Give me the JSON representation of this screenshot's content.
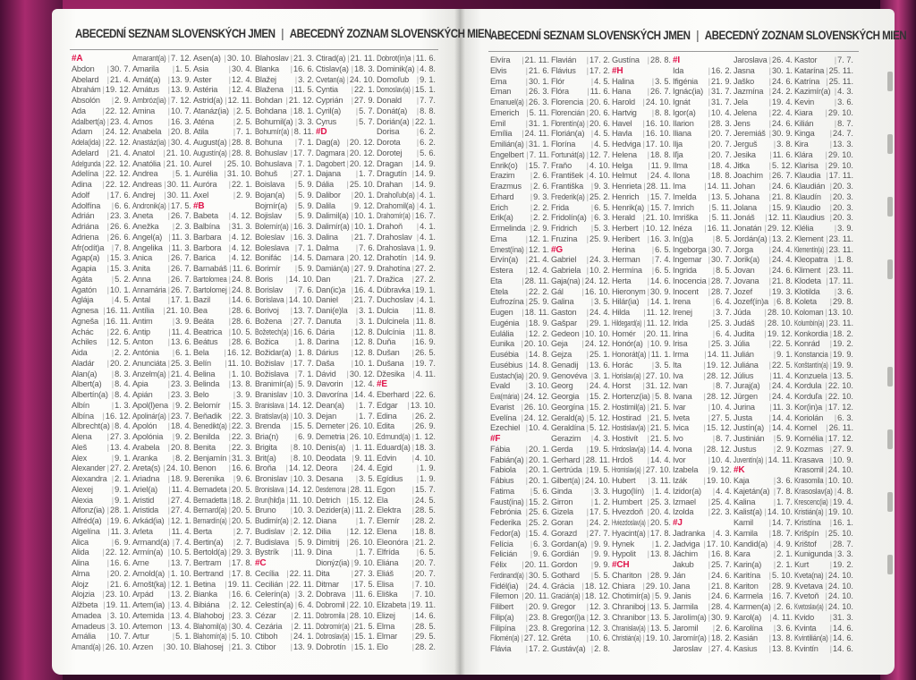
{
  "header_left": {
    "cz": "ABECEDNÍ SEZNAM SLOVENSKÝCH JMEN",
    "sep": "|",
    "sk": "ABECEDNÝ ZOZNAM SLOVENSKÝCH MIEN"
  },
  "header_right": {
    "cz": "ABECEDNÍ SEZNAM SLOVENSKÝCH JMEN",
    "sep": "|",
    "sk": "ABECEDNÝ ZOZNAM SLOVENSKÝCH MIEN"
  },
  "accent_color": "#e0134a",
  "left_columns": [
    [
      "#A",
      "Abdon|30. 7.",
      "Abelard|21. 4.",
      "Abrahám|19. 12.",
      "Absolón|2. 9.",
      "Ada|22. 12.",
      "Adalbert(a)|23. 4.",
      "Adam|24. 12.",
      "Adela(ida)|22. 12.",
      "Adelard|21. 4.",
      "Adelgunda|22. 12.",
      "Adelína|22. 12.",
      "Adina|22. 12.",
      "Adolf|17. 6.",
      "Adolfína|6. 6.",
      "Adrián|23. 3.",
      "Adriána|26. 6.",
      "Adriena|26. 6.",
      "Afr(odít)a|7. 8.",
      "Agap(a)|15. 3.",
      "Agapia|15. 3.",
      "Agáta|5. 2.",
      "Agatón|10. 1.",
      "Aglája|4. 5.",
      "Agnesa|16. 11.",
      "Agneša|16. 11.",
      "Achác|22. 6.",
      "Achiles|12. 5.",
      "Aida|2. 2.",
      "Aladár|20. 2.",
      "Alan(a)|8. 3.",
      "Albert(a)|8. 4.",
      "Albertín(a)|8. 4.",
      "Albín|1. 3.",
      "Albína|16. 12.",
      "Albrecht(a)|8. 4.",
      "Alena|27. 3.",
      "Aleš|13. 4.",
      "Alex|9. 1.",
      "Alexander|27. 2.",
      "Alexandra|2. 1.",
      "Alexej|9. 1.",
      "Alexia|9. 1.",
      "Alfonz(ia)|28. 1.",
      "Alfréd(a)|19. 6.",
      "Algelína|11. 3.",
      "Alica|6. 9.",
      "Alida|22. 12.",
      "Alina|16. 6.",
      "Alma|20. 2.",
      "Alojz|21. 6.",
      "Alojzia|23. 10.",
      "Alžbeta|19. 11.",
      "Amadea|3. 10.",
      "Amadeus|3. 10.",
      "Amália|10. 7.",
      "Amand(a)|26. 10."
    ],
    [
      "Amarant(a)|7. 12.",
      "Amarila|1. 5.",
      "Amát(a)|13. 9.",
      "Amátus|13. 9.",
      "Ambróz(ia)|7. 12.",
      "Amina|10. 7.",
      "Amos|16. 3.",
      "Anabela|20. 8.",
      "Anastáz(ia)|30. 4.",
      "Anatol|21. 10.",
      "Anatólia|21. 10.",
      "Andrea|5. 1.",
      "Andreas|30. 11.",
      "Andrej|30. 11.",
      "Andronik(a)|17. 5.",
      "Aneta|26. 7.",
      "Anežka|2. 3.",
      "Angel(a)|11. 3.",
      "Angelika|11. 3.",
      "Anica|26. 7.",
      "Anita|26. 7.",
      "Anna|26. 7.",
      "Annamária|26. 7.",
      "Antal|17. 1.",
      "Antília|21. 10.",
      "Antim|3. 9.",
      "Antip|11. 4.",
      "Anton|13. 6.",
      "Antónia|6. 1.",
      "Anunciáta|25. 3.",
      "Anzelm(a)|21. 4.",
      "Apia|23. 3.",
      "Apián|23. 3.",
      "Apol(l)ena|9. 2.",
      "Apolinár(a)|23. 7.",
      "Apolón|18. 4.",
      "Apolónia|9. 2.",
      "Arabela|20. 8.",
      "Aranka|8. 2.",
      "Areta(s)|24. 10.",
      "Ariadna|18. 9.",
      "Ariel(a)|11. 4.",
      "Aristid|27. 4.",
      "Aristida|27. 4.",
      "Arkád(ia)|12. 1.",
      "Arleta|11. 4.",
      "Armand(a)|7. 4.",
      "Armín(a)|10. 5.",
      "Arne|13. 7.",
      "Arnold(a)|1. 10.",
      "Arnošt(ka)|12. 1.",
      "Arpád|13. 2.",
      "Artem(ia)|13. 4.",
      "Artemida|13. 4.",
      "Artemon|13. 4.",
      "Artur|5. 1.",
      "Arzen|30. 10."
    ],
    [
      "Asen(a)|30. 10.",
      "Asia|30. 4.",
      "Aster|12. 4.",
      "Astéria|12. 4.",
      "Astrid(a)|12. 11.",
      "Atanáz(ia)|2. 5.",
      "Aténa|2. 5.",
      "Atila|7. 1.",
      "August(a)|28. 8.",
      "Augustín(a)|28. 8.",
      "Aurel|25. 10.",
      "Aurélia|31. 10.",
      "Auróra|22. 1.",
      "Axel|2. 9.",
      "#B",
      "Babeta|4. 12.",
      "Balbína|31. 3.",
      "Barbara|4. 12.",
      "Barbora|4. 12.",
      "Barica|4. 12.",
      "Barnabáš|11. 6.",
      "Bartolomea|24. 8.",
      "Bartolomej|24. 8.",
      "Bazil|14. 6.",
      "Bea|28. 6.",
      "Beáta|28. 6.",
      "Beatrica|10. 5.",
      "Beátus|28. 6.",
      "Bela|16. 12.",
      "Belín|11. 10.",
      "Belina|1. 10.",
      "Belinda|13. 8.",
      "Belo|3. 9.",
      "Belomír|15. 3.",
      "Beňadik|22. 3.",
      "Benedikt(a)|22. 3.",
      "Benilda|22. 3.",
      "Benita|22. 3.",
      "Benjamín|31. 3.",
      "Benon|16. 6.",
      "Berenika|9. 6.",
      "Bernadeta|20. 5.",
      "Bernadetta|18. 2.",
      "Bernard(a)|20. 5.",
      "Bernardín(a)|20. 5.",
      "Berta|2. 7.",
      "Bertin(a)|2. 7.",
      "Bertold(a)|29. 3.",
      "Bertram|17. 8.",
      "Bertrand|17. 8.",
      "Betina|19. 11.",
      "Bianka|16. 6.",
      "Bibiána|2. 12.",
      "Blahoboj|23. 3.",
      "Blahomil(a)|30. 4.",
      "Blahomír(a)|5. 10.",
      "Blahosej|21. 3."
    ],
    [
      "Blahoslav|21. 3.",
      "Blanka|16. 6.",
      "Blažej|3. 2.",
      "Blažena|11. 5.",
      "Bohdan|21. 12.",
      "Bohdana|18. 1.",
      "Bohumil(a)|3. 3.",
      "Bohumír(a)|8. 11.",
      "Bohuna|7. 1.",
      "Bohuslav|17. 7.",
      "Bohuslava|7. 1.",
      "Bohuš|27. 1.",
      "Boislava|5. 9.",
      "Bojan(a)|5. 9.",
      "Bojmír(a)|5. 9.",
      "Bojislav|5. 9.",
      "Bolemír(a)|16. 3.",
      "Boleslav|16. 3.",
      "Boleslava|7. 1.",
      "Bonifác|14. 5.",
      "Borimír|5. 9.",
      "Boris|14. 10.",
      "Borislav|7. 6.",
      "Borislava|14. 10.",
      "Borivoj|13. 7.",
      "Božena|27. 7.",
      "Božetech(a)|16. 6.",
      "Božica|1. 8.",
      "Božidar(a)|1. 8.",
      "Božislav|17. 7.",
      "Božislava|7. 1.",
      "Branimír(a)|5. 9.",
      "Branislav|10. 3.",
      "Branislava|14. 12.",
      "Bratislav(a)|10. 3.",
      "Brenda|15. 5.",
      "Bria(n)|6. 9.",
      "Brigita|8. 10.",
      "Brit(a)|8. 10.",
      "Broňa|14. 12.",
      "Bronislav|10. 3.",
      "Bronislava|14. 12.",
      "Brun(hild)a|11. 10.",
      "Bruno|10. 3.",
      "Budimír(a)|2. 12.",
      "Budislav|2. 12.",
      "Budislava|5. 9.",
      "Bystrík|11. 9.",
      "#C",
      "Cecília|22. 11.",
      "Cecilián|22. 11.",
      "Celerín(a)|3. 2.",
      "Celestín(a)|6. 4.",
      "Cézar|2. 11.",
      "Cezária|2. 11.",
      "Ctiboh|24. 1.",
      "Ctibor|13. 9."
    ],
    [
      "Ctirad(a)|21. 11.",
      "Ctislav(a)|18. 3.",
      "Cvetan(a)|24. 10.",
      "Cyntia|22. 1.",
      "Cyprián|27. 9.",
      "Cyril(a)|5. 7.",
      "Cyrus|5. 7.",
      "#D",
      "Dag(a)|20. 12.",
      "Dagmara|20. 12.",
      "Dagobert|20. 12.",
      "Dajana|1. 7.",
      "Dália|25. 10.",
      "Dalibor|20. 1.",
      "Dalila|9. 12.",
      "Dalimil(a)|10. 1.",
      "Dalimír(a)|10. 1.",
      "Dalina|21. 7.",
      "Dalma|7. 6.",
      "Damara|20. 12.",
      "Damián(a)|27. 9.",
      "Dan|21. 7.",
      "Dan(ic)a|16. 4.",
      "Daniel|21. 7.",
      "Dani(e)la|3. 1.",
      "Danuta|3. 1.",
      "Dária|12. 8.",
      "Darina|12. 8.",
      "Dárius|12. 8.",
      "Daša|10. 1.",
      "Dávid|30. 12.",
      "Davorin|12. 4.",
      "Davorína|14. 4.",
      "Dean(a)|1. 7.",
      "Dejan|1. 7.",
      "Demeter|26. 10.",
      "Demetria|26. 10.",
      "Denis(a)|1. 11.",
      "Deodata|9. 11.",
      "Deora|24. 4.",
      "Desana|3. 5.",
      "Desdemona|28. 11.",
      "Detrich|15. 12.",
      "Dezider(a)|11. 2.",
      "Diana|1. 7.",
      "Dilia|12. 12.",
      "Dimitrij|26. 10.",
      "Dina|1. 7.",
      "Dionýz(ia)|9. 10.",
      "Dita|27. 3.",
      "Ditmar|17. 5.",
      "Dobrava|11. 6.",
      "Dobromil|22. 10.",
      "Dobromila|28. 10.",
      "Dobromír(a)|21. 5.",
      "Dobroslav(a)|15. 1.",
      "Dobrotín|15. 1."
    ],
    [
      "Dobrot(in)a|11. 6.",
      "Dominik(a)|4. 8.",
      "Domoľub|9. 1.",
      "Domoslav(a)|15. 1.",
      "Donald|7. 7.",
      "Donát(a)|8. 8.",
      "Dorián(a)|22. 1.",
      "Dorisa|6. 2.",
      "Dorota|6. 2.",
      "Dorotej|5. 6.",
      "Dragan|14. 9.",
      "Dragutín|14. 9.",
      "Drahan|14. 9.",
      "Drahoľub(a)|4. 1.",
      "Drahomil(a)|4. 1.",
      "Drahomír(a)|16. 7.",
      "Drahoň|4. 1.",
      "Drahoslav|4. 1.",
      "Drahoslava|1. 9.",
      "Drahotín|14. 9.",
      "Drahotína|27. 2.",
      "Dražica|27. 2.",
      "Dúbravka|19. 1.",
      "Duchoslav|4. 1.",
      "Dulcia|11. 8.",
      "Dulcinela|11. 8.",
      "Dulcínia|11. 8.",
      "Duňa|16. 9.",
      "Dušan|26. 5.",
      "Dušana|19. 7.",
      "Džesika|4. 11.",
      "#E",
      "Eberhard|22. 6.",
      "Edgar|13. 10.",
      "Edina|26. 2.",
      "Edita|26. 9.",
      "Edmund(a)|1. 12.",
      "Eduard(a)|18. 3.",
      "Edvin|4. 10.",
      "Egid|1. 9.",
      "Egídius|1. 9.",
      "Egon|15. 7.",
      "Ela|24. 5.",
      "Elektra|28. 5.",
      "Elemír|28. 2.",
      "Elena|18. 8.",
      "Eleonóra|21. 2.",
      "Elfrída|6. 5.",
      "Eliána|20. 7.",
      "Eliáš|20. 7.",
      "Elisa|7. 10.",
      "Eliška|7. 10.",
      "Elizabeta|19. 11.",
      "Elizej|14. 6.",
      "Elma|28. 5.",
      "Elmar|29. 5.",
      "Elo|28. 2."
    ]
  ],
  "right_columns": [
    [
      "Elvíra|21. 11.",
      "Elvis|21. 6.",
      "Ema|30. 1.",
      "Eman|26. 3.",
      "Emanuel(a)|26. 3.",
      "Emerich|5. 11.",
      "Emil|31. 1.",
      "Emília|24. 11.",
      "Emilián(a)|31. 1.",
      "Engelbert|7. 11.",
      "Enrik(o)|15. 7.",
      "Erazim|2. 6.",
      "Erazmus|2. 6.",
      "Erhard|9. 3.",
      "Erich|2. 2.",
      "Erik(a)|2. 2.",
      "Ermelinda|2. 9.",
      "Erna|12. 1.",
      "Ernest(ína)|12. 1.",
      "Ervín(a)|21. 4.",
      "Estera|12. 4.",
      "Eta|28. 11.",
      "Etela|22. 2.",
      "Eufrozína|25. 9.",
      "Eugen|18. 11.",
      "Eugénia|18. 9.",
      "Eulália|12. 2.",
      "Eunika|20. 10.",
      "Eusébia|14. 8.",
      "Eusébius|14. 8.",
      "Eustach(ia)|20. 9.",
      "Evald|3. 10.",
      "Eva(mária)|24. 12.",
      "Evarist|26. 10.",
      "Evelína|24. 12.",
      "Ezechiel|10. 4.",
      "#F",
      "Fábia|20. 1.",
      "Fabián(a)|20. 1.",
      "Fabiola|20. 1.",
      "Fábius|20. 1.",
      "Fatima|5. 6.",
      "Faust(ína)|15. 2.",
      "Febrónia|25. 6.",
      "Federika|25. 2.",
      "Fedor(a)|15. 4.",
      "Felícia|6. 3.",
      "Felicián|9. 6.",
      "Félix|20. 11.",
      "Ferdinand(a)|30. 5.",
      "Fidél(ia)|24. 4.",
      "Filemon|20. 11.",
      "Filibert|20. 9.",
      "Filip(a)|23. 8.",
      "Filipína|23. 8.",
      "Filomén(a)|27. 12.",
      "Flávia|17. 2."
    ],
    [
      "Flavián|17. 2.",
      "Flávius|17. 2.",
      "Flór|4. 5.",
      "Flóra|11. 6.",
      "Florencia|20. 6.",
      "Florencián|20. 6.",
      "Florentín(a)|20. 6.",
      "Florián(a)|4. 5.",
      "Florína|4. 5.",
      "Fortunát(a)|12. 7.",
      "Fraňo|4. 10.",
      "František|4. 10.",
      "Františka|9. 3.",
      "Frederik(a)|25. 2.",
      "Frida|6. 5.",
      "Fridolín(a)|6. 3.",
      "Fridrich|5. 3.",
      "Fruzina|25. 9.",
      "#G",
      "Gabriel|24. 3.",
      "Gabriela|10. 2.",
      "Gaja(na)|24. 12.",
      "Gál|16. 10.",
      "Galina|3. 5.",
      "Gaston|24. 4.",
      "Gašpar|29. 1.",
      "Gedeon|10. 10.",
      "Geja|24. 12.",
      "Gejza|25. 1.",
      "Genadij|13. 6.",
      "Genovéva|3. 1.",
      "Georg|24. 4.",
      "Georgia|15. 2.",
      "Georgína|15. 2.",
      "Gerald(a)|5. 12.",
      "Geraldína|5. 12.",
      "Gerazim|4. 3.",
      "Gerda|19. 5.",
      "Gerhard|28. 11.",
      "Gertrúda|19. 5.",
      "Gilbert(a)|24. 10.",
      "Ginda|3. 3.",
      "Girron|1. 2.",
      "Gizela|17. 5.",
      "Goran|24. 2.",
      "Gorazd|27. 7.",
      "Gordan(a)|9. 9.",
      "Gordián|9. 9.",
      "Gordon|9. 9.",
      "Gothard|5. 5.",
      "Grácia|18. 12.",
      "Gracián(a)|18. 12.",
      "Gregor|12. 3.",
      "Gregor(i)a|12. 3.",
      "Gregorína|12. 3.",
      "Gréta|10. 6.",
      "Gustáv(a)|2. 8."
    ],
    [
      "Gustína|28. 8.",
      "#H",
      "Halina|3. 5.",
      "Hana|26. 7.",
      "Harold|24. 10.",
      "Hartvig|8. 8.",
      "Havel|16. 10.",
      "Havla|16. 10.",
      "Hedviga|17. 10.",
      "Helena|18. 8.",
      "Helga|11. 9.",
      "Helmut|24. 4.",
      "Henrieta|28. 11.",
      "Henrich|15. 7.",
      "Henrik(a)|15. 7.",
      "Herald|21. 10.",
      "Herbert|10. 12.",
      "Heribert|16. 3.",
      "Herina|6. 5.",
      "Herman|7. 4.",
      "Hermína|6. 5.",
      "Herta|14. 6.",
      "Hieronym|30. 9.",
      "Hilár(ia)|14. 1.",
      "Hilda|11. 12.",
      "Hildegard(a)|11. 12.",
      "Homér|20. 11.",
      "Honór(a)|10. 9.",
      "Honorát(a)|11. 1.",
      "Horác|3. 5.",
      "Horislav(a)|27. 10.",
      "Horst|31. 12.",
      "Hortenz(ia)|5. 8.",
      "Hostimil(a)|21. 5.",
      "Hostirad|21. 5.",
      "Hostislav(a)|21. 5.",
      "Hostivít|21. 5.",
      "Hrdoslav(a)|14. 4.",
      "Hrdoš|14. 4.",
      "Hromislav(a)|27. 10.",
      "Hubert|3. 11.",
      "Hugo(lín)|1. 4.",
      "Humbert|25. 3.",
      "Hvezdoň|20. 4.",
      "Hviezdoslav(a)|20. 5.",
      "Hyacint(a)|17. 8.",
      "Hynek|1. 2.",
      "Hypolit|13. 8.",
      "#CH",
      "Chariton|28. 9.",
      "Chiara|29. 10.",
      "Chotimír(a)|5. 9.",
      "Chraniboj|13. 5.",
      "Chranibor|13. 5.",
      "Chranislav(a)|13. 5.",
      "Christián(a)|19. 10."
    ],
    [
      "#I",
      "Ida|16. 2.",
      "Ifigénia|21. 9.",
      "Ignác(ia)|31. 7.",
      "Ignát|31. 7.",
      "Igor(a)|10. 4.",
      "Ilarion|28. 3.",
      "Iliana|20. 7.",
      "Ilja|20. 7.",
      "Iľja|20. 7.",
      "Ilma|18. 4.",
      "Ilona|18. 8.",
      "Ima|14. 11.",
      "Imelda|13. 5.",
      "Imrich|5. 11.",
      "Imriška|5. 11.",
      "Inéza|16. 11.",
      "In(g)a|8. 5.",
      "Ingeborga|30. 7.",
      "Ingemar|30. 7.",
      "Ingrida|8. 5.",
      "Inocencia|28. 7.",
      "Inocent|28. 7.",
      "Irena|6. 4.",
      "Irenej|3. 7.",
      "Irida|25. 3.",
      "Irina|6. 4.",
      "Irisa|25. 3.",
      "Irma|14. 11.",
      "Ita|19. 12.",
      "Iva|28. 12.",
      "Ivan|8. 7.",
      "Ivana|28. 12.",
      "Ivar|10. 4.",
      "Iveta|27. 5.",
      "Ivica|15. 12.",
      "Ivo|8. 7.",
      "Ivona|28. 12.",
      "Ivor|10. 4.",
      "Izabela|9. 12.",
      "Izák|19. 10.",
      "Izidor(a)|4. 4.",
      "Izmael|25. 4.",
      "Izolda|22. 3.",
      "#J",
      "Jadranka|4. 3.",
      "Jadviga|17. 10.",
      "Jáchim|16. 8.",
      "Jakub|25. 7.",
      "Ján|24. 6.",
      "Jana|21. 8.",
      "Janis|24. 6.",
      "Jarmila|28. 4.",
      "Jarolím(a)|30. 9.",
      "Jaromil|2. 6.",
      "Jaromír(a)|18. 2.",
      "Jaroslav|27. 4."
    ],
    [
      "Jaroslava|26. 4.",
      "Jasna|30. 1.",
      "Jaško|24. 6.",
      "Jazmína|24. 2.",
      "Jela|19. 4.",
      "Jelena|22. 4.",
      "Jens|24. 6.",
      "Jeremiáš|30. 9.",
      "Jerguš|3. 8.",
      "Jesika|11. 6.",
      "Jitka|5. 12.",
      "Joachim|26. 7.",
      "Johan|24. 6.",
      "Johana|21. 8.",
      "Jolana|15. 9.",
      "Jonáš|12. 11.",
      "Jonatán|29. 12.",
      "Jordán(a)|13. 2.",
      "Jorga|24. 4.",
      "Jorik(a)|24. 4.",
      "Jovan|24. 6.",
      "Jovana|21. 8.",
      "Jozef|19. 3.",
      "Jozef(ín)a|6. 8.",
      "Júda|28. 10.",
      "Judáš|28. 10.",
      "Judita|19. 12.",
      "Júlia|22. 5.",
      "Julián|9. 1.",
      "Juliána|22. 5.",
      "Július|11. 4.",
      "Juraj(a)|24. 4.",
      "Jürgen|24. 4.",
      "Jurina|11. 3.",
      "Justa|14. 4.",
      "Justín(a)|14. 4.",
      "Justinián|5. 9.",
      "Justus|2. 9.",
      "Juventín(a)|14. 11.",
      "#K",
      "Kaja|3. 6.",
      "Kajetán(a)|7. 8.",
      "Kalina|1. 7.",
      "Kalist(a)|14. 10.",
      "Kamil|14. 7.",
      "Kamila|18. 7.",
      "Kandid(a)|4. 9.",
      "Kara|2. 1.",
      "Karin(a)|2. 1.",
      "Karitína|5. 10.",
      "Kariton|28. 9.",
      "Karmela|16. 7.",
      "Karmen(a)|2. 6.",
      "Karol(a)|4. 11.",
      "Karolína|3. 6.",
      "Kasián|13. 8.",
      "Kasius|13. 8."
    ],
    [
      "Kastor|7. 7.",
      "Katarína|25. 11.",
      "Katrína|25. 11.",
      "Kazimír(a)|4. 3.",
      "Kevin|3. 6.",
      "Kiara|29. 10.",
      "Kilián|8. 7.",
      "Kinga|24. 7.",
      "Kira|13. 3.",
      "Klára|29. 10.",
      "Klarisa|29. 10.",
      "Klaudia|17. 11.",
      "Klaudián|20. 3.",
      "Klaudín|20. 3.",
      "Klaudio|20. 3.",
      "Klaudius|20. 3.",
      "Klélia|3. 9.",
      "Klement|23. 11.",
      "Klementín(a)|23. 11.",
      "Kleopatra|1. 8.",
      "Kliment|23. 11.",
      "Klodeta|17. 11.",
      "Klotilda|3. 6.",
      "Koleta|29. 8.",
      "Koloman|13. 10.",
      "Kolumbín(a)|23. 11.",
      "Konkordia|18. 2.",
      "Konrád|19. 2.",
      "Konstancia|19. 9.",
      "Konštantín(a)|19. 9.",
      "Konzuela|13. 5.",
      "Kordula|22. 10.",
      "Korduľa|22. 10.",
      "Kor(in)a|17. 12.",
      "Koriolán|6. 3.",
      "Kornel|26. 11.",
      "Kornélia|17. 12.",
      "Kozmas|27. 9.",
      "Krasava|10. 9.",
      "Krasomil|24. 10.",
      "Krasomila|10. 10.",
      "Krasoslav(a)|4. 8.",
      "Krescenc(ia)|19. 4.",
      "Kristián(a)|19. 10.",
      "Kristína|16. 1.",
      "Krišpín|25. 10.",
      "Krištof|28. 7.",
      "Kunigunda|3. 3.",
      "Kurt|19. 2.",
      "Kveta(na)|24. 10.",
      "Kvetava|24. 10.",
      "Kvetoň|24. 10.",
      "Kvetoslav(a)|24. 10.",
      "Kvido|31. 3.",
      "Kvinta|14. 6.",
      "Kvintilián(a)|14. 6.",
      "Kvintín|14. 6."
    ]
  ]
}
